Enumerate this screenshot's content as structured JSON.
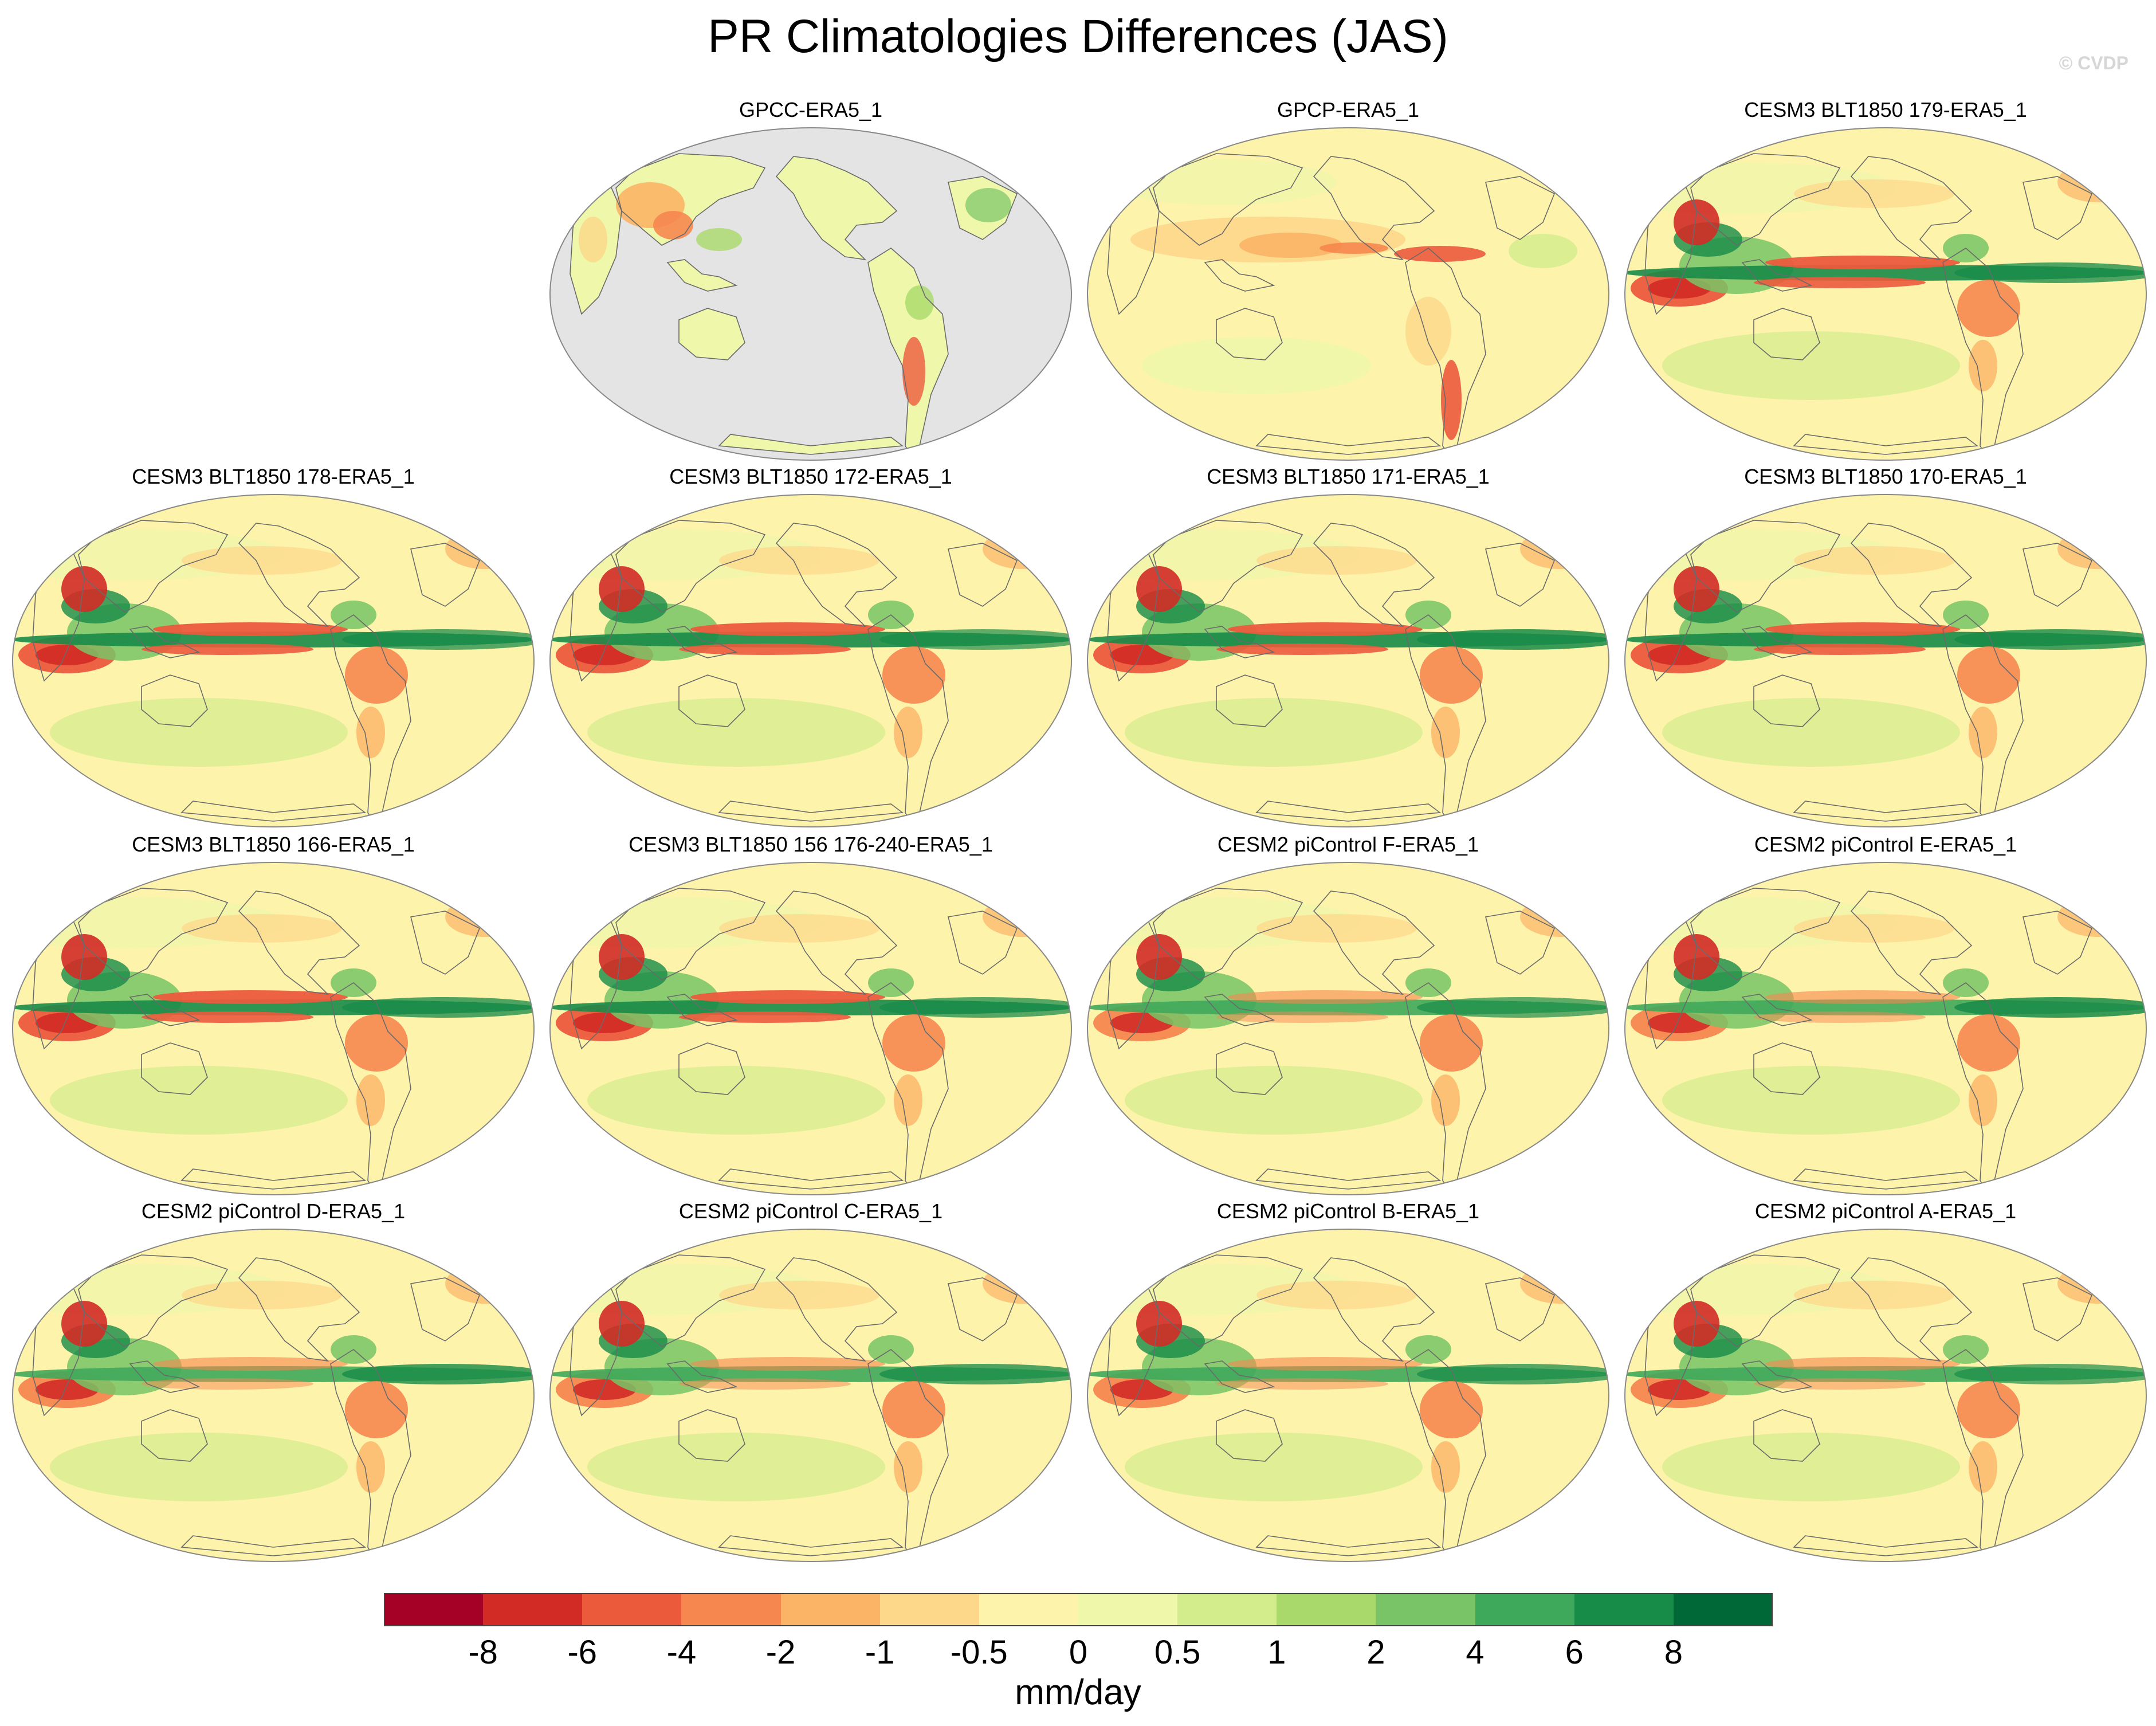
{
  "title": "PR Climatologies Differences (JAS)",
  "credit": "© CVDP",
  "colors": {
    "land": "#f4f1b0",
    "ocean_masked": "#e4e4e4",
    "coast": "#6a6a6a",
    "outline": "#888888"
  },
  "panels": [
    {
      "title": "GPCC-ERA5_1",
      "land_only": true
    },
    {
      "title": "GPCP-ERA5_1"
    },
    {
      "title": "CESM3 BLT1850 179-ERA5_1"
    },
    {
      "title": "CESM3 BLT1850 178-ERA5_1"
    },
    {
      "title": "CESM3 BLT1850 172-ERA5_1"
    },
    {
      "title": "CESM3 BLT1850 171-ERA5_1"
    },
    {
      "title": "CESM3 BLT1850 170-ERA5_1"
    },
    {
      "title": "CESM3 BLT1850 166-ERA5_1"
    },
    {
      "title": "CESM3 BLT1850 156 176-240-ERA5_1"
    },
    {
      "title": "CESM2 piControl F-ERA5_1"
    },
    {
      "title": "CESM2 piControl E-ERA5_1"
    },
    {
      "title": "CESM2 piControl D-ERA5_1"
    },
    {
      "title": "CESM2 piControl C-ERA5_1"
    },
    {
      "title": "CESM2 piControl B-ERA5_1"
    },
    {
      "title": "CESM2 piControl A-ERA5_1"
    }
  ],
  "colorbar": {
    "colors": [
      "#a50026",
      "#d22b26",
      "#ec5a3c",
      "#f6874f",
      "#fbb466",
      "#fdd78a",
      "#fef3ab",
      "#eef7aa",
      "#d3ec8c",
      "#a9d96a",
      "#78c466",
      "#3fa95b",
      "#178b48",
      "#006837"
    ],
    "labels": [
      "-8",
      "-6",
      "-4",
      "-2",
      "-1",
      "-0.5",
      "0",
      "0.5",
      "1",
      "2",
      "4",
      "6",
      "8"
    ],
    "units": "mm/day"
  }
}
